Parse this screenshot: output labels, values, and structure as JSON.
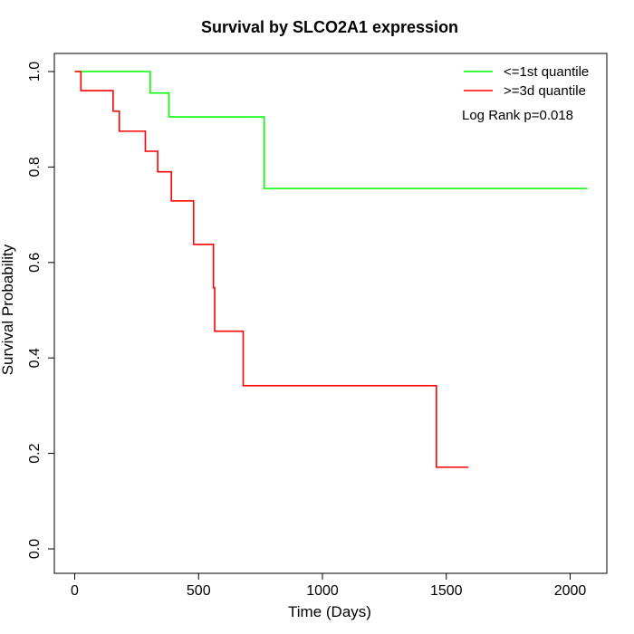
{
  "chart_data": {
    "type": "line",
    "title": "Survival by SLCO2A1 expression",
    "xlabel": "Time (Days)",
    "ylabel": "Survival Probability",
    "xlim": [
      0,
      2070
    ],
    "ylim": [
      0,
      1.0
    ],
    "x_ticks": [
      0,
      500,
      1000,
      1500,
      2000
    ],
    "y_ticks": [
      0.0,
      0.2,
      0.4,
      0.6,
      0.8,
      1.0
    ],
    "x_tick_labels": [
      "0",
      "500",
      "1000",
      "1500",
      "2000"
    ],
    "y_tick_labels": [
      "0.0",
      "0.2",
      "0.4",
      "0.6",
      "0.8",
      "1.0"
    ],
    "grid": false,
    "legend_position": "top-right",
    "annotation": "Log Rank p=0.018",
    "series": [
      {
        "name": "<=1st quantile",
        "color": "#00ff00",
        "step": true,
        "x": [
          0,
          305,
          380,
          765,
          2070
        ],
        "y": [
          1.0,
          0.955,
          0.905,
          0.755,
          0.755
        ]
      },
      {
        "name": ">=3d quantile",
        "color": "#ff0000",
        "step": true,
        "x": [
          0,
          25,
          155,
          180,
          285,
          335,
          390,
          480,
          560,
          565,
          680,
          1460,
          1590
        ],
        "y": [
          1.0,
          0.96,
          0.917,
          0.875,
          0.833,
          0.79,
          0.729,
          0.638,
          0.547,
          0.456,
          0.342,
          0.171,
          0.171
        ]
      }
    ]
  }
}
